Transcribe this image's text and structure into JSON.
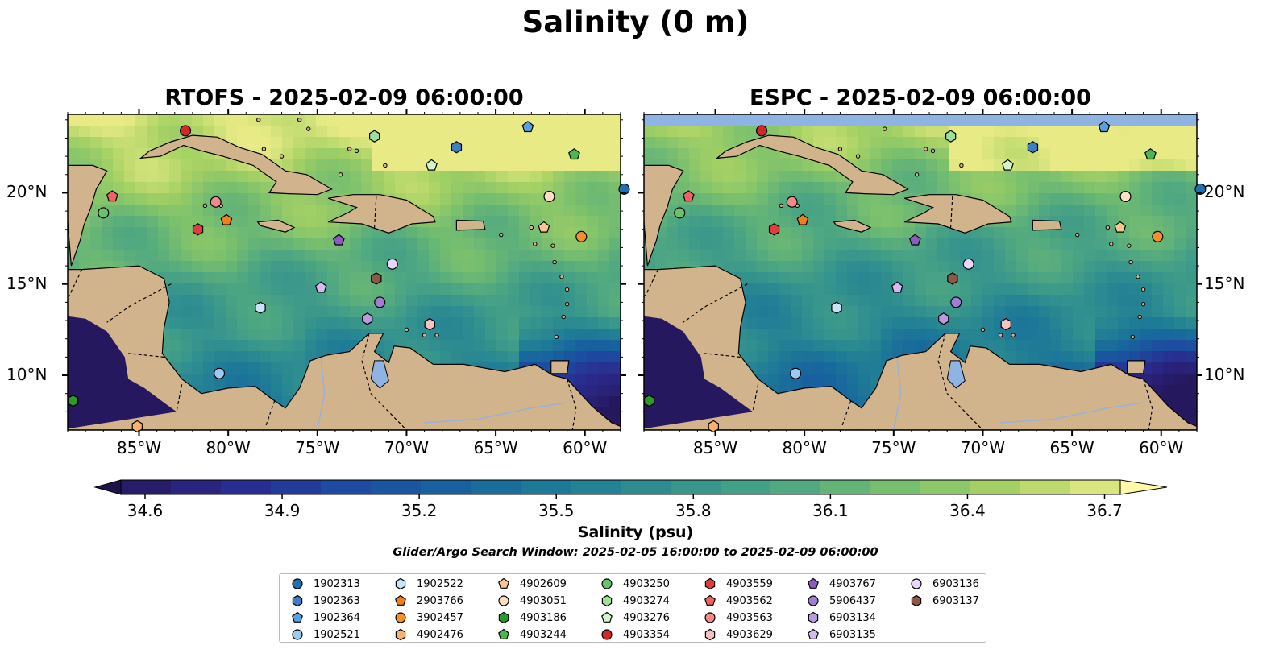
{
  "title": "Salinity (0 m)",
  "panels": [
    {
      "title": "RTOFS - 2025-02-09 06:00:00"
    },
    {
      "title": "ESPC - 2025-02-09 06:00:00"
    }
  ],
  "map": {
    "lon_range": [
      -89,
      -58
    ],
    "lat_range": [
      7,
      24.3
    ],
    "lon_ticks": [
      "85°W",
      "80°W",
      "75°W",
      "70°W",
      "65°W",
      "60°W"
    ],
    "lat_ticks": [
      "20°N",
      "15°N",
      "10°N"
    ],
    "land_color": "#d2b48c",
    "water_nodata_color": "#8fb4e3"
  },
  "colorbar": {
    "label": "Salinity (psu)",
    "ticks": [
      "34.6",
      "34.9",
      "35.2",
      "35.5",
      "35.8",
      "36.1",
      "36.4",
      "36.7"
    ],
    "range": [
      34.6,
      36.7
    ],
    "colormap": [
      "#26185f",
      "#2a2a8c",
      "#1d4aa0",
      "#17639e",
      "#1f7c96",
      "#33928e",
      "#4ea782",
      "#78bf6e",
      "#a8d264",
      "#e7ea85"
    ]
  },
  "search_window": "Glider/Argo Search Window: 2025-02-05 16:00:00 to 2025-02-09 06:00:00",
  "legend": [
    {
      "id": "1902313",
      "marker": "circle",
      "color": "#1f6fb4"
    },
    {
      "id": "1902363",
      "marker": "hexagon",
      "color": "#3b7fc4"
    },
    {
      "id": "1902364",
      "marker": "pentagon",
      "color": "#5a9fe0"
    },
    {
      "id": "1902521",
      "marker": "circle",
      "color": "#9fcaf0"
    },
    {
      "id": "1902522",
      "marker": "hexagon",
      "color": "#c8e4f8"
    },
    {
      "id": "2903766",
      "marker": "pentagon",
      "color": "#f07f17"
    },
    {
      "id": "3902457",
      "marker": "circle",
      "color": "#f5912d"
    },
    {
      "id": "4902476",
      "marker": "hexagon",
      "color": "#f9b46a"
    },
    {
      "id": "4902609",
      "marker": "pentagon",
      "color": "#f9c690"
    },
    {
      "id": "4903051",
      "marker": "circle",
      "color": "#fde0c2"
    },
    {
      "id": "4903186",
      "marker": "hexagon",
      "color": "#2a9a2a"
    },
    {
      "id": "4903244",
      "marker": "pentagon",
      "color": "#4cb84c"
    },
    {
      "id": "4903250",
      "marker": "circle",
      "color": "#6cc26c"
    },
    {
      "id": "4903274",
      "marker": "hexagon",
      "color": "#a2e09a"
    },
    {
      "id": "4903276",
      "marker": "pentagon",
      "color": "#d2f5c8"
    },
    {
      "id": "4903354",
      "marker": "circle",
      "color": "#d62728"
    },
    {
      "id": "4903559",
      "marker": "hexagon",
      "color": "#e03c3c"
    },
    {
      "id": "4903562",
      "marker": "pentagon",
      "color": "#ee6262"
    },
    {
      "id": "4903563",
      "marker": "circle",
      "color": "#f38a8a"
    },
    {
      "id": "4903629",
      "marker": "hexagon",
      "color": "#f9c0c0"
    },
    {
      "id": "4903767",
      "marker": "pentagon",
      "color": "#8a5cc2"
    },
    {
      "id": "5906437",
      "marker": "circle",
      "color": "#a37dd1"
    },
    {
      "id": "6903134",
      "marker": "hexagon",
      "color": "#b89ae0"
    },
    {
      "id": "6903135",
      "marker": "pentagon",
      "color": "#d5baf2"
    },
    {
      "id": "6903136",
      "marker": "circle",
      "color": "#ebd6fb"
    },
    {
      "id": "6903137",
      "marker": "hexagon",
      "color": "#8c5a44"
    }
  ],
  "floats": [
    {
      "id": "4903354",
      "lon": -82.4,
      "lat": 23.4
    },
    {
      "id": "1902364",
      "lon": -63.2,
      "lat": 23.6
    },
    {
      "id": "4903274",
      "lon": -71.8,
      "lat": 23.1
    },
    {
      "id": "1902363",
      "lon": -67.2,
      "lat": 22.5
    },
    {
      "id": "4903244",
      "lon": -60.6,
      "lat": 22.1
    },
    {
      "id": "4903276",
      "lon": -68.6,
      "lat": 21.5
    },
    {
      "id": "4903562",
      "lon": -86.5,
      "lat": 19.8
    },
    {
      "id": "4903250",
      "lon": -87.0,
      "lat": 18.9
    },
    {
      "id": "4903563",
      "lon": -80.7,
      "lat": 19.5
    },
    {
      "id": "2903766",
      "lon": -80.1,
      "lat": 18.5
    },
    {
      "id": "4903559",
      "lon": -81.7,
      "lat": 18.0
    },
    {
      "id": "4903051",
      "lon": -62.0,
      "lat": 19.8
    },
    {
      "id": "1902313",
      "lon": -57.8,
      "lat": 20.2
    },
    {
      "id": "4902609",
      "lon": -62.3,
      "lat": 18.1
    },
    {
      "id": "3902457",
      "lon": -60.2,
      "lat": 17.6
    },
    {
      "id": "4903767",
      "lon": -73.8,
      "lat": 17.4
    },
    {
      "id": "6903136",
      "lon": -70.8,
      "lat": 16.1
    },
    {
      "id": "6903137",
      "lon": -71.7,
      "lat": 15.3
    },
    {
      "id": "6903135",
      "lon": -74.8,
      "lat": 14.8
    },
    {
      "id": "5906437",
      "lon": -71.5,
      "lat": 14.0
    },
    {
      "id": "1902522",
      "lon": -78.2,
      "lat": 13.7
    },
    {
      "id": "6903134",
      "lon": -72.2,
      "lat": 13.1
    },
    {
      "id": "4903629",
      "lon": -68.7,
      "lat": 12.8
    },
    {
      "id": "1902521",
      "lon": -80.5,
      "lat": 10.1
    },
    {
      "id": "4903186",
      "lon": -88.7,
      "lat": 8.6
    },
    {
      "id": "4902476",
      "lon": -85.1,
      "lat": 7.2
    }
  ]
}
